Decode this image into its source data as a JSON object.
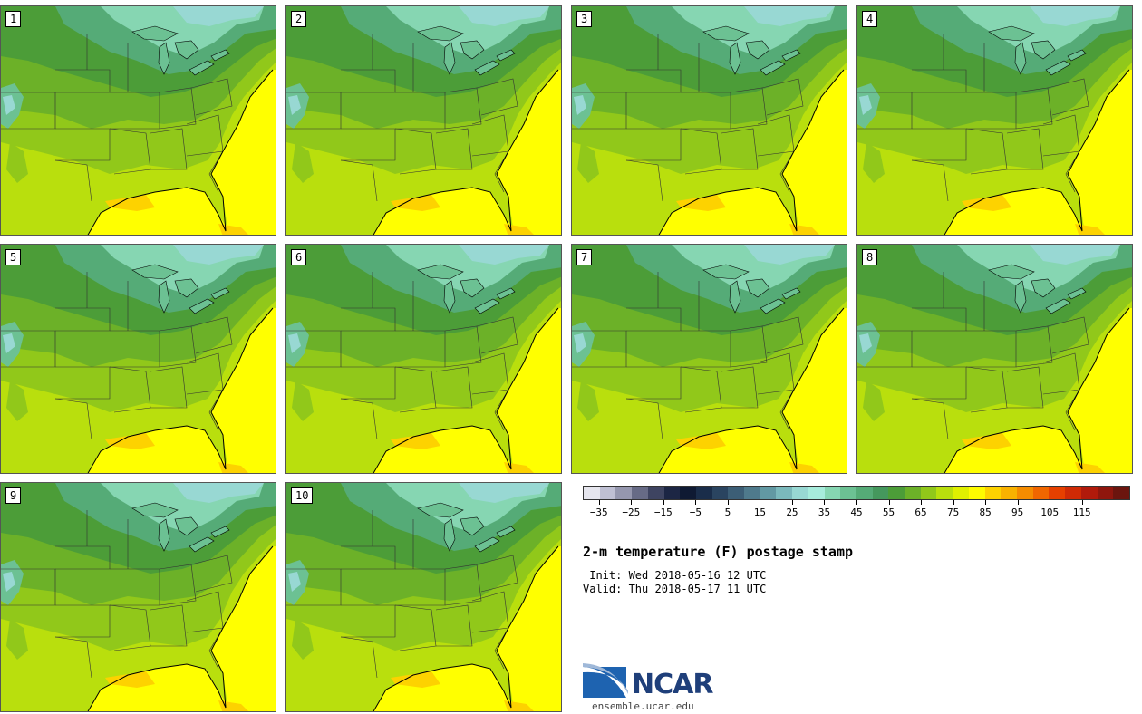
{
  "title": "2-m temperature (F) postage stamp",
  "init_line": " Init: Wed 2018-05-16 12 UTC",
  "valid_line": "Valid: Thu 2018-05-17 11 UTC",
  "panels": [
    "1",
    "2",
    "3",
    "4",
    "5",
    "6",
    "7",
    "8",
    "9",
    "10"
  ],
  "colorbar": {
    "colors": [
      "#e6e6ee",
      "#bfc0d3",
      "#9597ae",
      "#676b86",
      "#3e4461",
      "#1c2644",
      "#0f1a33",
      "#1a2d4a",
      "#2a4460",
      "#3c5e76",
      "#4f7a8c",
      "#6299a3",
      "#7bb9bc",
      "#98d8d3",
      "#a7ecdc",
      "#86d6b2",
      "#6cc193",
      "#55ab77",
      "#45985d",
      "#4c9d38",
      "#6cb128",
      "#91c81a",
      "#b9df0d",
      "#e0f000",
      "#fffc00",
      "#fdd200",
      "#f9b200",
      "#f58c00",
      "#f06600",
      "#e64000",
      "#cf2a05",
      "#b11a0b",
      "#8f160d",
      "#6b150e"
    ],
    "min": -40,
    "max": 130,
    "ticks": [
      "-35",
      "-25",
      "-15",
      "-5",
      "5",
      "15",
      "25",
      "35",
      "45",
      "55",
      "65",
      "75",
      "85",
      "95",
      "105",
      "115"
    ]
  },
  "logo": {
    "text": "NCAR",
    "url": "ensemble.ucar.edu"
  }
}
